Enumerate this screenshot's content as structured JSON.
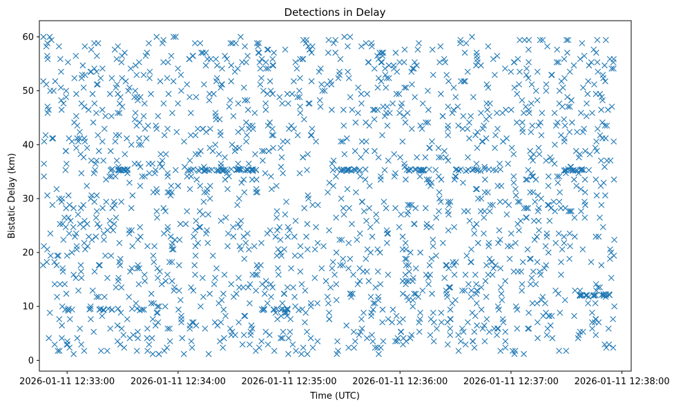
{
  "chart_data": {
    "type": "scatter",
    "title": "Detections in Delay",
    "xlabel": "Time (UTC)",
    "ylabel": "Bistatic Delay (km)",
    "marker": "x",
    "color": "#1f77b4",
    "x_unit": "seconds since 2026-01-11 12:33:00",
    "xlim": [
      -15,
      305
    ],
    "ylim": [
      -2,
      63
    ],
    "x_ticks": [
      0,
      60,
      120,
      180,
      240,
      300
    ],
    "x_tick_labels": [
      "2026-01-11 12:33:00",
      "2026-01-11 12:34:00",
      "2026-01-11 12:35:00",
      "2026-01-11 12:36:00",
      "2026-01-11 12:37:00",
      "2026-01-11 12:38:00"
    ],
    "y_ticks": [
      0,
      10,
      20,
      30,
      40,
      50,
      60
    ],
    "y_tick_labels": [
      "0",
      "10",
      "20",
      "30",
      "40",
      "50",
      "60"
    ],
    "series": [
      {
        "name": "Detections",
        "x_range": [
          -13,
          296
        ],
        "y_range": [
          1,
          60
        ],
        "count": 1900,
        "seed": 20260111,
        "clusters": [
          {
            "y": 35.3,
            "x_from": 23,
            "x_to": 34,
            "n": 14
          },
          {
            "y": 35.3,
            "x_from": 65,
            "x_to": 103,
            "n": 40
          },
          {
            "y": 35.3,
            "x_from": 145,
            "x_to": 162,
            "n": 18
          },
          {
            "y": 35.3,
            "x_from": 183,
            "x_to": 196,
            "n": 16
          },
          {
            "y": 35.3,
            "x_from": 210,
            "x_to": 235,
            "n": 18
          },
          {
            "y": 35.3,
            "x_from": 268,
            "x_to": 280,
            "n": 12
          },
          {
            "y": 12.1,
            "x_from": 277,
            "x_to": 294,
            "n": 22
          },
          {
            "y": 9.4,
            "x_from": 0,
            "x_to": 40,
            "n": 18
          },
          {
            "y": 9.4,
            "x_from": 105,
            "x_to": 130,
            "n": 14
          }
        ]
      }
    ]
  }
}
